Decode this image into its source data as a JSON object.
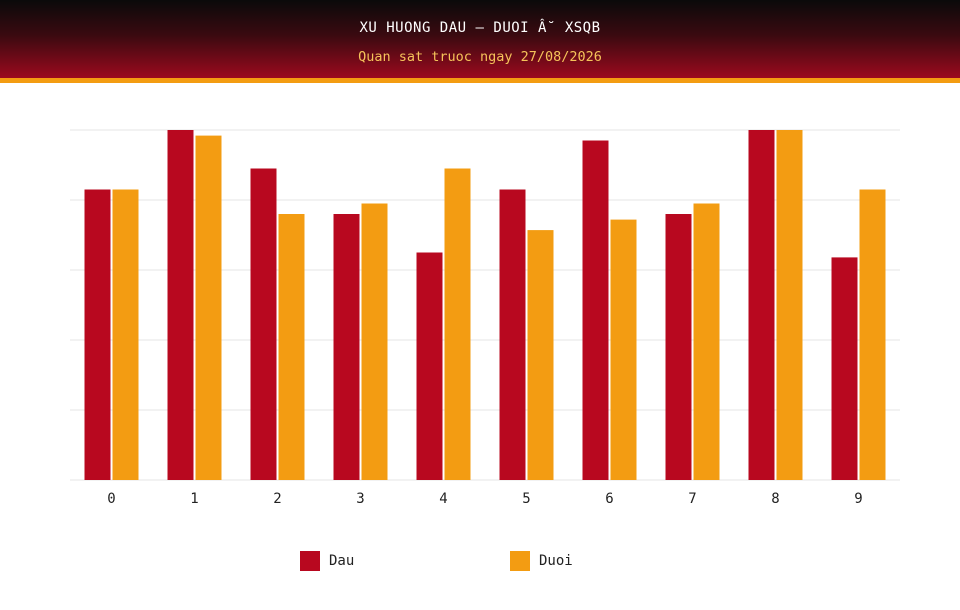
{
  "header": {
    "title": "XU HUONG DAU – DUOI Â˘ XSQB",
    "subtitle": "Quan sat truoc ngay 27/08/2026"
  },
  "colors": {
    "dau": "#b8081f",
    "duoi": "#f39c12",
    "grid": "#e6e6e6",
    "header_accent": "#f39c12"
  },
  "chart_data": {
    "type": "bar",
    "categories": [
      "0",
      "1",
      "2",
      "3",
      "4",
      "5",
      "6",
      "7",
      "8",
      "9"
    ],
    "series": [
      {
        "name": "Dau",
        "values": [
          4.15,
          5.0,
          4.45,
          3.8,
          3.25,
          4.15,
          4.85,
          3.8,
          5.0,
          3.18
        ]
      },
      {
        "name": "Duoi",
        "values": [
          4.15,
          4.92,
          3.8,
          3.95,
          4.45,
          3.57,
          3.72,
          3.95,
          5.0,
          4.15
        ]
      }
    ],
    "ylim": [
      0,
      5
    ],
    "grid": true,
    "legend_position": "bottom-center",
    "ytick_labels_shown": false
  },
  "legend": {
    "items": [
      {
        "label": "Dau"
      },
      {
        "label": "Duoi"
      }
    ]
  }
}
